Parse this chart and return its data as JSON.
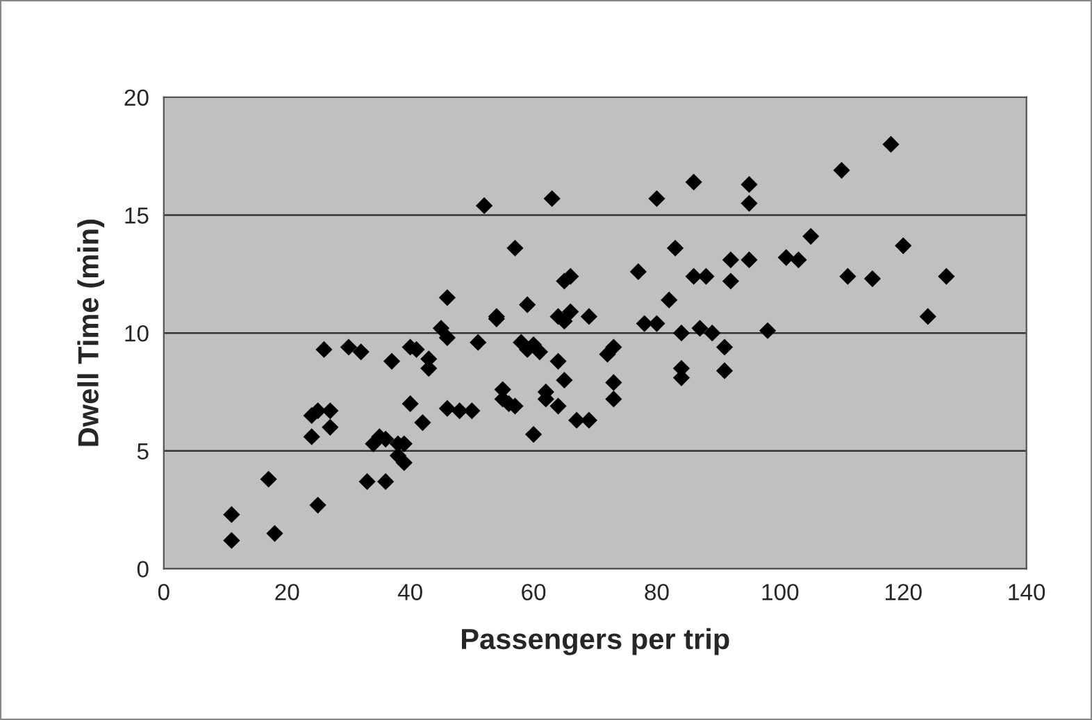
{
  "chart_data": {
    "type": "scatter",
    "xlabel": "Passengers per trip",
    "ylabel": "Dwell Time (min)",
    "xlim": [
      0,
      140
    ],
    "ylim": [
      0,
      20
    ],
    "xticks": [
      0,
      20,
      40,
      60,
      80,
      100,
      120,
      140
    ],
    "yticks": [
      0,
      5,
      10,
      15,
      20
    ],
    "grid": "y",
    "marker": "diamond",
    "series": [
      {
        "color": "#000000",
        "x": [
          11,
          11,
          17,
          18,
          25,
          24,
          24,
          25,
          26,
          27,
          27,
          30,
          32,
          33,
          34,
          35,
          36,
          37,
          36,
          38,
          38,
          39,
          39,
          40,
          41,
          40,
          42,
          43,
          43,
          45,
          46,
          46,
          46,
          48,
          50,
          51,
          52,
          54,
          54,
          55,
          55,
          56,
          57,
          57,
          58,
          59,
          59,
          60,
          60,
          61,
          62,
          62,
          63,
          64,
          64,
          64,
          65,
          65,
          65,
          66,
          66,
          67,
          69,
          69,
          72,
          73,
          73,
          73,
          77,
          78,
          80,
          80,
          82,
          83,
          84,
          84,
          84,
          86,
          86,
          87,
          88,
          89,
          91,
          91,
          92,
          92,
          95,
          95,
          95,
          98,
          101,
          103,
          105,
          110,
          111,
          115,
          118,
          120,
          124,
          127
        ],
        "values": [
          2.3,
          1.2,
          3.8,
          1.5,
          2.7,
          5.6,
          6.5,
          6.7,
          9.3,
          6.7,
          6.0,
          9.4,
          9.2,
          3.7,
          5.3,
          5.6,
          3.7,
          8.8,
          5.5,
          5.3,
          4.8,
          4.5,
          5.3,
          9.4,
          9.3,
          7.0,
          6.2,
          8.9,
          8.5,
          10.2,
          9.8,
          11.5,
          6.8,
          6.7,
          6.7,
          9.6,
          15.4,
          10.7,
          10.6,
          7.6,
          7.2,
          7.0,
          6.9,
          13.6,
          9.6,
          11.2,
          9.3,
          9.5,
          5.7,
          9.2,
          7.5,
          7.2,
          15.7,
          10.7,
          8.8,
          6.9,
          10.5,
          8.0,
          12.2,
          12.4,
          10.9,
          6.3,
          6.3,
          10.7,
          9.1,
          9.4,
          7.9,
          7.2,
          12.6,
          10.4,
          15.7,
          10.4,
          11.4,
          13.6,
          10.0,
          8.5,
          8.1,
          16.4,
          12.4,
          10.2,
          12.4,
          10.0,
          8.4,
          9.4,
          12.2,
          13.1,
          16.3,
          15.5,
          13.1,
          10.1,
          13.2,
          13.1,
          14.1,
          16.9,
          12.4,
          12.3,
          18.0,
          13.7,
          10.7,
          12.4
        ]
      }
    ]
  }
}
